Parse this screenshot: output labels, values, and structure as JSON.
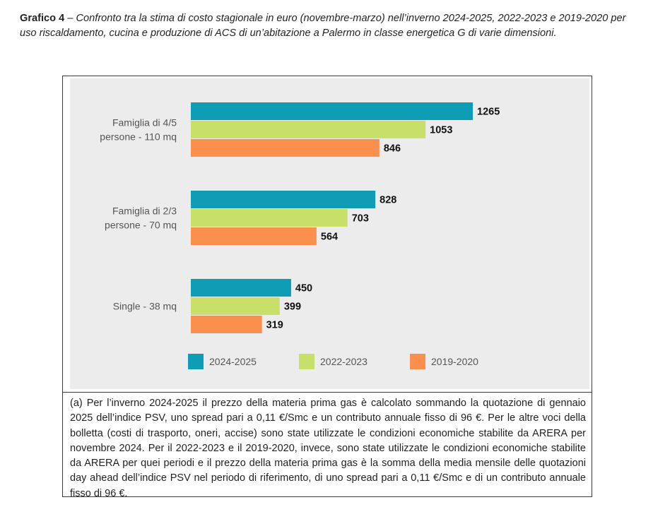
{
  "caption": {
    "label": "Grafico 4",
    "text": " – Confronto tra la stima di costo stagionale in euro (novembre-marzo) nell’inverno 2024-2025, 2022-2023 e 2019-2020 per uso riscaldamento, cucina e produzione di ACS di un’abitazione a Palermo in classe energetica G di varie dimensioni."
  },
  "colors": {
    "2024-2025": "#0f9db5",
    "2022-2023": "#c8e06a",
    "2019-2020": "#fb8f4e"
  },
  "chart_data": {
    "type": "bar",
    "orientation": "horizontal",
    "categories": [
      [
        "Famiglia di 4/5",
        "persone - 110 mq"
      ],
      [
        "Famiglia di 2/3",
        "persone - 70 mq"
      ],
      [
        "Single - 38 mq"
      ]
    ],
    "series": [
      {
        "name": "2024-2025",
        "values": [
          1265,
          828,
          450
        ]
      },
      {
        "name": "2022-2023",
        "values": [
          1053,
          703,
          399
        ]
      },
      {
        "name": "2019-2020",
        "values": [
          846,
          564,
          319
        ]
      }
    ],
    "xlim": [
      0,
      1265
    ],
    "grid": false,
    "legend_position": "bottom",
    "data_labels": true
  },
  "note": {
    "text": "(a) Per l’inverno 2024-2025 il prezzo della materia prima gas è calcolato sommando la quotazione di gennaio 2025 dell’indice PSV, uno spread pari a 0,11 €/Smc e un contributo annuale fisso di 96 €. Per le altre voci della bolletta (costi di trasporto, oneri, accise) sono state utilizzate le condizioni economiche stabilite da ARERA per novembre 2024. Per il 2022-2023 e il 2019-2020, invece, sono state utilizzate le condizioni economiche stabilite da ARERA per quei periodi e il prezzo della materia prima gas è la somma della media mensile delle quotazioni day ahead dell’indice PSV nel periodo di riferimento, di uno spread pari a 0,11 €/Smc e di un contributo annuale fisso di 96 €."
  }
}
